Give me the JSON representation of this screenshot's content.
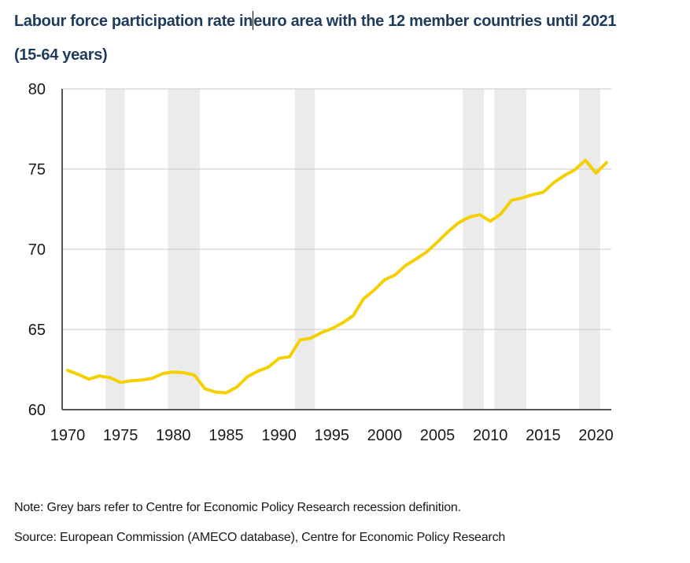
{
  "title": {
    "line1_part1": "Labour force participation rate in",
    "line1_part2": "euro area with the 12 member countries until 2021",
    "line2": "(15-64 years)"
  },
  "notes": {
    "note": "Note: Grey bars refer to Centre for Economic Policy Research recession definition.",
    "source": "Source: European Commission (AMECO database), Centre for Economic Policy Research"
  },
  "colors": {
    "line": "#f5d000",
    "recession": "#ebebeb",
    "grid": "#c8c8c8",
    "axis": "#555555",
    "title": "#1f3b5c"
  },
  "chart_data": {
    "type": "line",
    "title": "Labour force participation rate in euro area with the 12 member countries until 2021 (15-64 years)",
    "xlabel": "",
    "ylabel": "",
    "xlim": [
      1970,
      2021
    ],
    "ylim": [
      60,
      80
    ],
    "grid": "horizontal",
    "legend": "none",
    "yticks": [
      60,
      65,
      70,
      75,
      80
    ],
    "xticks": [
      1970,
      1975,
      1980,
      1985,
      1990,
      1995,
      2000,
      2005,
      2010,
      2015,
      2020
    ],
    "x": [
      1970,
      1971,
      1972,
      1973,
      1974,
      1975,
      1976,
      1977,
      1978,
      1979,
      1980,
      1981,
      1982,
      1983,
      1984,
      1985,
      1986,
      1987,
      1988,
      1989,
      1990,
      1991,
      1992,
      1993,
      1994,
      1995,
      1996,
      1997,
      1998,
      1999,
      2000,
      2001,
      2002,
      2003,
      2004,
      2005,
      2006,
      2007,
      2008,
      2009,
      2010,
      2011,
      2012,
      2013,
      2014,
      2015,
      2016,
      2017,
      2018,
      2019,
      2020,
      2021
    ],
    "series": [
      {
        "name": "Labour force participation rate (15-64 years)",
        "values": [
          62.45,
          62.2,
          61.9,
          62.1,
          62.0,
          61.7,
          61.8,
          61.85,
          61.95,
          62.25,
          62.35,
          62.3,
          62.15,
          61.3,
          61.1,
          61.05,
          61.4,
          62.05,
          62.4,
          62.65,
          63.2,
          63.3,
          64.35,
          64.45,
          64.8,
          65.05,
          65.4,
          65.85,
          66.9,
          67.45,
          68.1,
          68.4,
          69.0,
          69.4,
          69.85,
          70.45,
          71.1,
          71.65,
          72.0,
          72.15,
          71.75,
          72.2,
          73.05,
          73.2,
          73.4,
          73.55,
          74.15,
          74.6,
          74.95,
          75.55,
          74.75,
          75.4
        ]
      }
    ],
    "recession_periods": [
      [
        1973.6,
        1975.4
      ],
      [
        1979.5,
        1982.5
      ],
      [
        1991.5,
        1993.4
      ],
      [
        2007.4,
        2009.4
      ],
      [
        2010.4,
        2013.4
      ],
      [
        2018.4,
        2020.4
      ]
    ]
  }
}
